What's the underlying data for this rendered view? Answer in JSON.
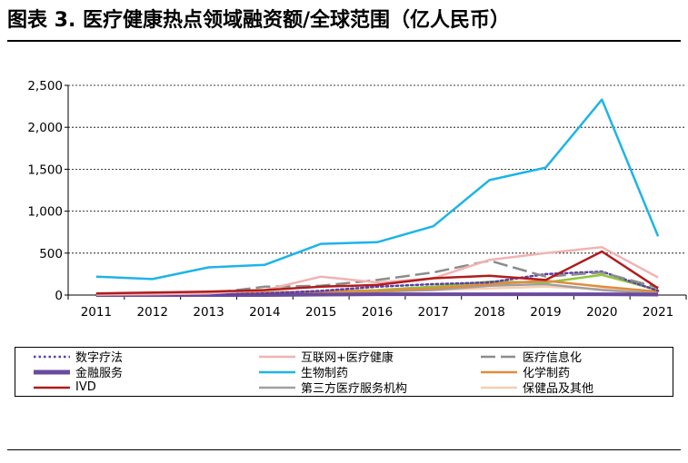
{
  "title": "图表 3. 医疗健康热点领域融资额/全球范围（亿人民币）",
  "chart_data": {
    "type": "line",
    "title": "",
    "xlabel": "",
    "ylabel": "",
    "categories": [
      "2011",
      "2012",
      "2013",
      "2014",
      "2015",
      "2016",
      "2017",
      "2018",
      "2019",
      "2020",
      "2021"
    ],
    "ylim": [
      0,
      2500
    ],
    "yticks": [
      "0",
      "500",
      "1,000",
      "1,500",
      "2,000",
      "2,500"
    ],
    "ytick_values": [
      0,
      500,
      1000,
      1500,
      2000,
      2500
    ],
    "grid": "y-dashed",
    "legend_position": "bottom",
    "series": [
      {
        "name": "数字疗法",
        "color": "#5b3fa8",
        "dash": "dots",
        "width": 2.5,
        "values": [
          0,
          0,
          5,
          20,
          50,
          100,
          130,
          150,
          250,
          280,
          50
        ]
      },
      {
        "name": "互联网+医疗健康",
        "color": "#f2b3b3",
        "dash": "solid",
        "width": 2.5,
        "values": [
          5,
          10,
          20,
          60,
          220,
          150,
          200,
          420,
          500,
          570,
          210
        ]
      },
      {
        "name": "医疗信息化",
        "color": "#8c8c8c",
        "dash": "longdash",
        "width": 2.5,
        "values": [
          5,
          10,
          20,
          100,
          110,
          180,
          270,
          410,
          220,
          270,
          90
        ]
      },
      {
        "name": "金融服务",
        "color": "#6a4a9c",
        "dash": "solid",
        "width": 4,
        "values": [
          0,
          0,
          0,
          0,
          5,
          10,
          10,
          10,
          10,
          10,
          5
        ]
      },
      {
        "name": "生物制药",
        "color": "#1eb4e6",
        "dash": "solid",
        "width": 2.5,
        "values": [
          220,
          190,
          330,
          360,
          610,
          630,
          820,
          1370,
          1520,
          2330,
          700
        ]
      },
      {
        "name": "化学制药",
        "color": "#e08c3c",
        "dash": "solid",
        "width": 2.5,
        "values": [
          10,
          15,
          20,
          30,
          40,
          50,
          80,
          130,
          170,
          100,
          40
        ]
      },
      {
        "name": "IVD",
        "color": "#b01c1c",
        "dash": "solid",
        "width": 2.5,
        "values": [
          20,
          30,
          40,
          60,
          100,
          120,
          200,
          230,
          180,
          520,
          80
        ]
      },
      {
        "name": "第三方医疗服务机构",
        "color": "#a0a0a0",
        "dash": "solid",
        "width": 2.5,
        "values": [
          5,
          10,
          10,
          20,
          30,
          40,
          60,
          110,
          130,
          60,
          20
        ]
      },
      {
        "name": "保健品及其他",
        "color": "#f6cdb3",
        "dash": "solid",
        "width": 2.5,
        "values": [
          5,
          10,
          15,
          20,
          30,
          50,
          60,
          80,
          100,
          70,
          20
        ]
      },
      {
        "name": "",
        "color": "#8fc43f",
        "dash": "solid",
        "width": 2.5,
        "values": [
          5,
          10,
          15,
          30,
          40,
          60,
          100,
          160,
          150,
          240,
          60
        ]
      }
    ]
  }
}
